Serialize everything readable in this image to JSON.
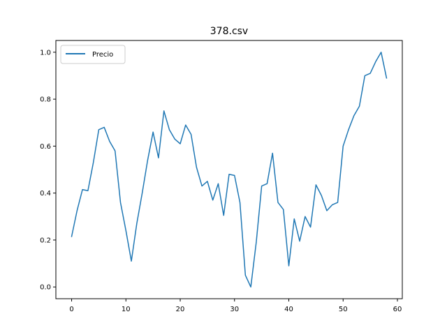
{
  "chart_data": {
    "type": "line",
    "title": "378.csv",
    "xlabel": "",
    "ylabel": "",
    "xlim": [
      -2.9,
      60.9
    ],
    "ylim": [
      -0.05,
      1.05
    ],
    "xticks": [
      0,
      10,
      20,
      30,
      40,
      50,
      60
    ],
    "yticks": [
      0.0,
      0.2,
      0.4,
      0.6,
      0.8,
      1.0
    ],
    "xtick_labels": [
      "0",
      "10",
      "20",
      "30",
      "40",
      "50",
      "60"
    ],
    "ytick_labels": [
      "0.0",
      "0.2",
      "0.4",
      "0.6",
      "0.8",
      "1.0"
    ],
    "grid": false,
    "legend": {
      "position": "top-left"
    },
    "series": [
      {
        "name": "Precio",
        "color": "#1f77b4",
        "x": [
          0,
          1,
          2,
          3,
          4,
          5,
          6,
          7,
          8,
          9,
          10,
          11,
          12,
          13,
          14,
          15,
          16,
          17,
          18,
          19,
          20,
          21,
          22,
          23,
          24,
          25,
          26,
          27,
          28,
          29,
          30,
          31,
          32,
          33,
          34,
          35,
          36,
          37,
          38,
          39,
          40,
          41,
          42,
          43,
          44,
          45,
          46,
          47,
          48,
          49,
          50,
          51,
          52,
          53,
          54,
          55,
          56,
          57,
          58
        ],
        "y": [
          0.215,
          0.325,
          0.415,
          0.41,
          0.53,
          0.67,
          0.68,
          0.62,
          0.58,
          0.36,
          0.24,
          0.11,
          0.27,
          0.4,
          0.54,
          0.66,
          0.55,
          0.75,
          0.67,
          0.63,
          0.61,
          0.69,
          0.65,
          0.51,
          0.43,
          0.45,
          0.37,
          0.44,
          0.305,
          0.48,
          0.475,
          0.36,
          0.05,
          0.0,
          0.19,
          0.43,
          0.44,
          0.57,
          0.36,
          0.33,
          0.09,
          0.29,
          0.195,
          0.3,
          0.255,
          0.435,
          0.39,
          0.325,
          0.35,
          0.36,
          0.6,
          0.67,
          0.73,
          0.77,
          0.9,
          0.91,
          0.96,
          1.0,
          0.89
        ]
      }
    ]
  }
}
